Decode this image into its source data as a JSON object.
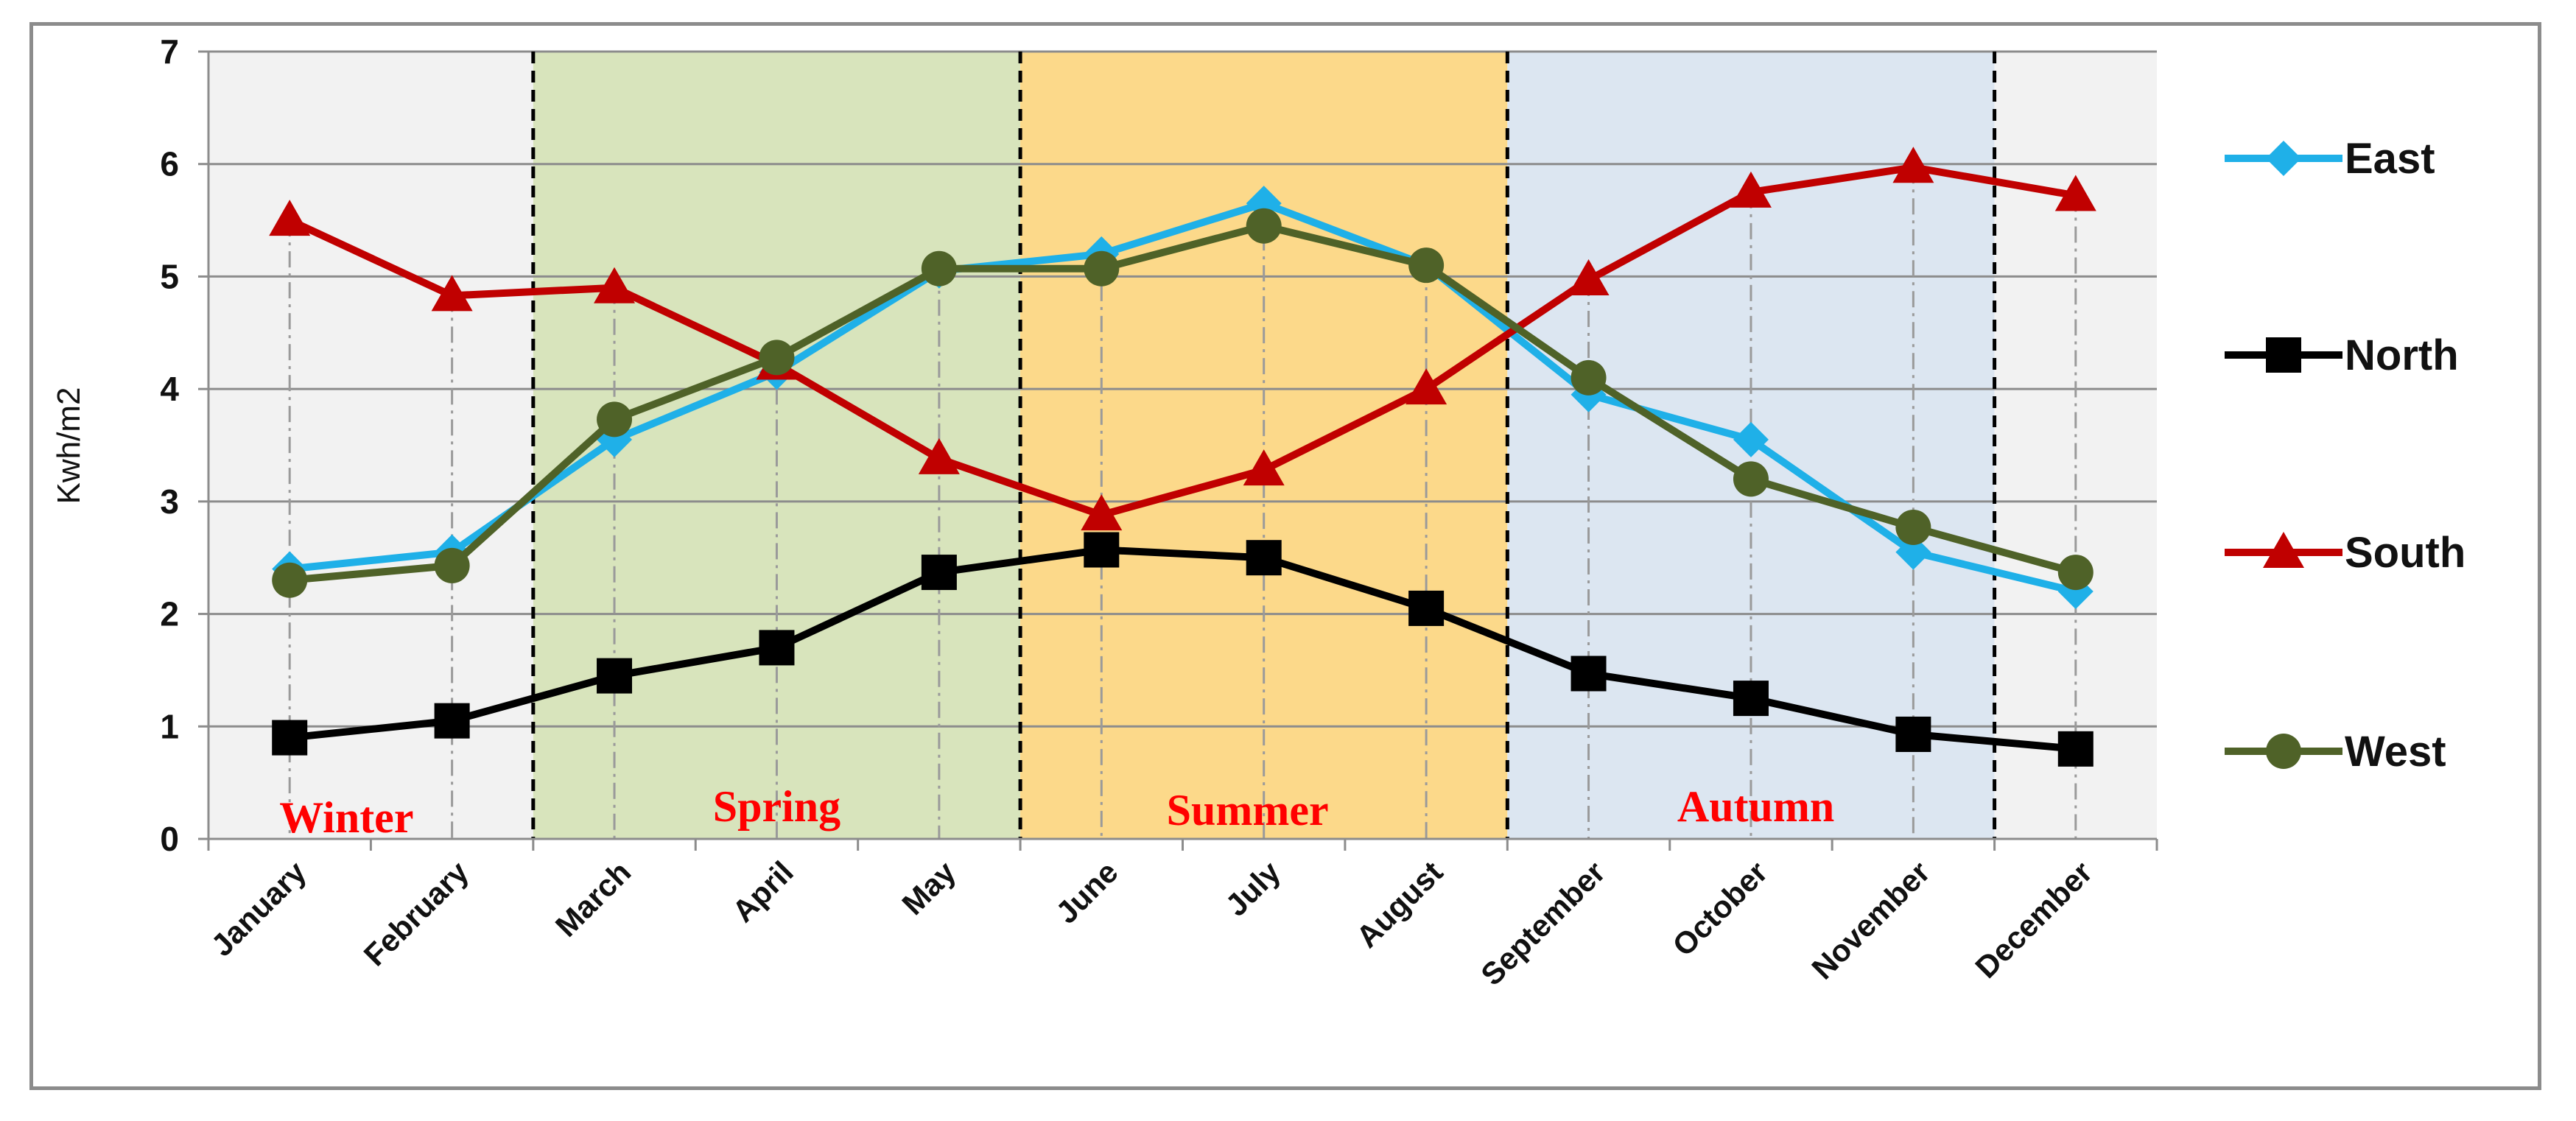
{
  "chart_data": {
    "type": "line",
    "title": "",
    "xlabel": "",
    "ylabel": "Kwh/m2",
    "ylim": [
      0,
      7
    ],
    "yticks": [
      0,
      1,
      2,
      3,
      4,
      5,
      6,
      7
    ],
    "grid": true,
    "legend_position": "right",
    "categories": [
      "January",
      "February",
      "March",
      "April",
      "May",
      "June",
      "July",
      "August",
      "September",
      "October",
      "November",
      "December"
    ],
    "series": [
      {
        "name": "East",
        "color": "#1fb0e8",
        "marker": "diamond",
        "values": [
          2.4,
          2.55,
          3.55,
          4.15,
          5.05,
          5.2,
          5.65,
          5.1,
          3.95,
          3.55,
          2.55,
          2.2
        ]
      },
      {
        "name": "North",
        "color": "#000000",
        "marker": "square",
        "values": [
          0.9,
          1.05,
          1.45,
          1.7,
          2.37,
          2.57,
          2.5,
          2.05,
          1.47,
          1.25,
          0.93,
          0.8
        ]
      },
      {
        "name": "South",
        "color": "#c00000",
        "marker": "triangle",
        "values": [
          5.5,
          4.83,
          4.9,
          4.22,
          3.38,
          2.88,
          3.28,
          4.0,
          4.97,
          5.75,
          5.97,
          5.72
        ]
      },
      {
        "name": "West",
        "color": "#4f6228",
        "marker": "circle",
        "values": [
          2.3,
          2.43,
          3.73,
          4.28,
          5.07,
          5.07,
          5.45,
          5.1,
          4.1,
          3.2,
          2.77,
          2.37
        ]
      }
    ],
    "seasons": [
      {
        "label": "Winter",
        "start": -0.5,
        "end": 1.5,
        "color": "#f2f2f2"
      },
      {
        "label": "Spring",
        "start": 1.5,
        "end": 4.5,
        "color": "#d8e4bc"
      },
      {
        "label": "Summer",
        "start": 4.5,
        "end": 7.5,
        "color": "#fcd98a"
      },
      {
        "label": "Autumn",
        "start": 7.5,
        "end": 10.5,
        "color": "#dce6f1"
      },
      {
        "label": "",
        "start": 10.5,
        "end": 11.5,
        "color": "#f2f2f2"
      }
    ]
  }
}
